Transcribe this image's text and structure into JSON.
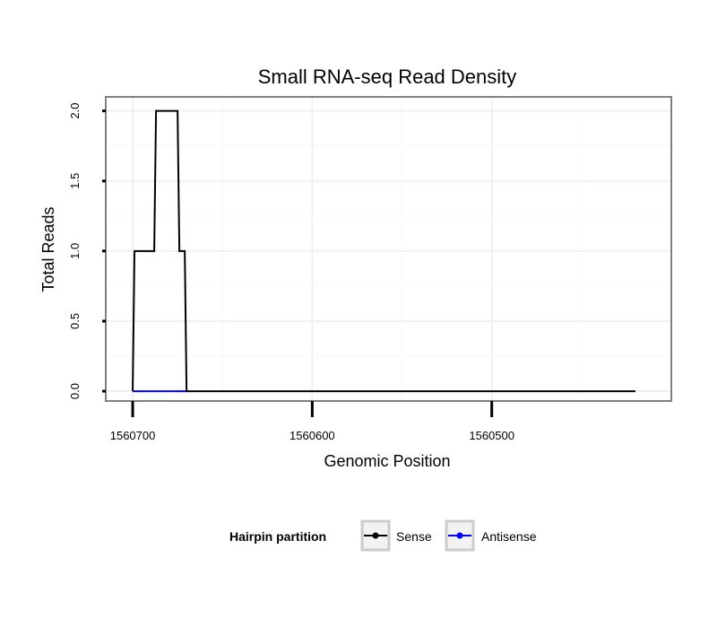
{
  "chart_data": {
    "type": "line",
    "title": "Small RNA-seq Read Density",
    "xlabel": "Genomic Position",
    "ylabel": "Total Reads",
    "x_reversed": true,
    "xlim": [
      1560715,
      1560400
    ],
    "ylim": [
      -0.07,
      2.1
    ],
    "x_ticks": [
      1560700,
      1560600,
      1560500
    ],
    "x_tick_labels": [
      "1560700",
      "1560600",
      "1560500"
    ],
    "y_ticks": [
      0.0,
      0.5,
      1.0,
      1.5,
      2.0
    ],
    "y_tick_labels": [
      "0.0",
      "0.5",
      "1.0",
      "1.5",
      "2.0"
    ],
    "grid": true,
    "legend": {
      "title": "Hairpin partition",
      "position": "bottom",
      "entries": [
        {
          "name": "Sense",
          "color": "#000000"
        },
        {
          "name": "Antisense",
          "color": "#0000ff"
        }
      ]
    },
    "series": [
      {
        "name": "Sense",
        "color": "#000000",
        "x": [
          1560700,
          1560699,
          1560688,
          1560687,
          1560675,
          1560674,
          1560671,
          1560670,
          1560420
        ],
        "y": [
          0,
          1,
          1,
          2,
          2,
          1,
          1,
          0,
          0
        ]
      },
      {
        "name": "Antisense",
        "color": "#0000ff",
        "x": [
          1560700,
          1560670
        ],
        "y": [
          0,
          0
        ]
      }
    ]
  }
}
